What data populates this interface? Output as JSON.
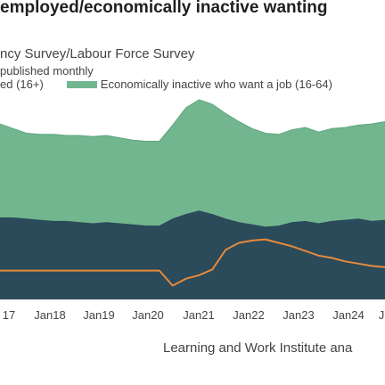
{
  "page": {
    "title": "employed/economically inactive wanting",
    "subtitle": "ncy Survey/Labour Force Survey",
    "note": "published monthly",
    "source": "Learning and Work Institute ana"
  },
  "chart_data": {
    "type": "area",
    "x": [
      "2017-03",
      "2017-06",
      "2017-09",
      "2017-12",
      "2018-03",
      "2018-06",
      "2018-09",
      "2018-12",
      "2019-03",
      "2019-06",
      "2019-09",
      "2019-12",
      "2020-03",
      "2020-06",
      "2020-09",
      "2020-12",
      "2021-03",
      "2021-06",
      "2021-09",
      "2021-12",
      "2022-03",
      "2022-06",
      "2022-09",
      "2022-12",
      "2023-03",
      "2023-06",
      "2023-09",
      "2023-12",
      "2024-03",
      "2024-06"
    ],
    "xticks": [
      "17",
      "Jan18",
      "Jan19",
      "Jan20",
      "Jan21",
      "Jan22",
      "Jan23",
      "Jan24",
      "J"
    ],
    "series": [
      {
        "name": "ed (16+)",
        "color": "#2b4a5a",
        "values": [
          55,
          55,
          54,
          53,
          52,
          52,
          51,
          50,
          51,
          50,
          49,
          48,
          48,
          54,
          58,
          61,
          58,
          54,
          51,
          49,
          47,
          48,
          51,
          52,
          50,
          52,
          53,
          54,
          52,
          53
        ]
      },
      {
        "name": "Economically inactive who want a job (16-64)",
        "color": "#72b690",
        "values": [
          136,
          132,
          128,
          127,
          127,
          126,
          126,
          125,
          126,
          124,
          122,
          121,
          121,
          135,
          150,
          157,
          153,
          145,
          138,
          132,
          128,
          127,
          131,
          133,
          129,
          132,
          133,
          135,
          136,
          138
        ]
      },
      {
        "name": "",
        "color": "#e68a3c",
        "values": [
          9,
          9,
          9,
          9,
          9,
          9,
          9,
          9,
          9,
          9,
          9,
          9,
          9,
          -4,
          2,
          5,
          10,
          27,
          33,
          35,
          36,
          33,
          30,
          26,
          22,
          20,
          17,
          15,
          13,
          12
        ]
      }
    ],
    "ylim": [
      -16,
      160
    ],
    "grid": false,
    "legend_position": "top"
  }
}
